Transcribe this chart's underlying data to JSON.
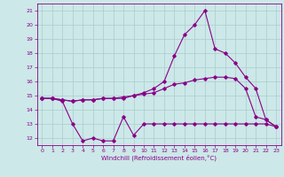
{
  "title": "",
  "xlabel": "Windchill (Refroidissement éolien,°C)",
  "bg_color": "#cce8e8",
  "grid_color": "#aacccc",
  "line_color": "#880088",
  "ylim": [
    11.5,
    21.5
  ],
  "xlim": [
    -0.5,
    23.5
  ],
  "yticks": [
    12,
    13,
    14,
    15,
    16,
    17,
    18,
    19,
    20,
    21
  ],
  "xticks": [
    0,
    1,
    2,
    3,
    4,
    5,
    6,
    7,
    8,
    9,
    10,
    11,
    12,
    13,
    14,
    15,
    16,
    17,
    18,
    19,
    20,
    21,
    22,
    23
  ],
  "line1": [
    14.8,
    14.8,
    14.6,
    13.0,
    11.8,
    12.0,
    11.8,
    11.8,
    13.5,
    12.2,
    13.0,
    13.0,
    13.0,
    13.0,
    13.0,
    13.0,
    13.0,
    13.0,
    13.0,
    13.0,
    13.0,
    13.0,
    13.0,
    12.8
  ],
  "line2": [
    14.8,
    14.8,
    14.7,
    14.6,
    14.7,
    14.7,
    14.8,
    14.8,
    14.8,
    15.0,
    15.1,
    15.2,
    15.5,
    15.8,
    15.9,
    16.1,
    16.2,
    16.3,
    16.3,
    16.2,
    15.5,
    13.5,
    13.3,
    12.8
  ],
  "line3": [
    14.8,
    14.8,
    14.7,
    14.6,
    14.7,
    14.7,
    14.8,
    14.8,
    14.9,
    15.0,
    15.2,
    15.5,
    16.0,
    17.8,
    19.3,
    20.0,
    21.0,
    18.3,
    18.0,
    17.3,
    16.3,
    15.5,
    13.3,
    12.8
  ],
  "marker": "D",
  "markersize": 1.8,
  "linewidth": 0.8,
  "xlabel_fontsize": 5.0,
  "tick_labelsize": 4.5
}
